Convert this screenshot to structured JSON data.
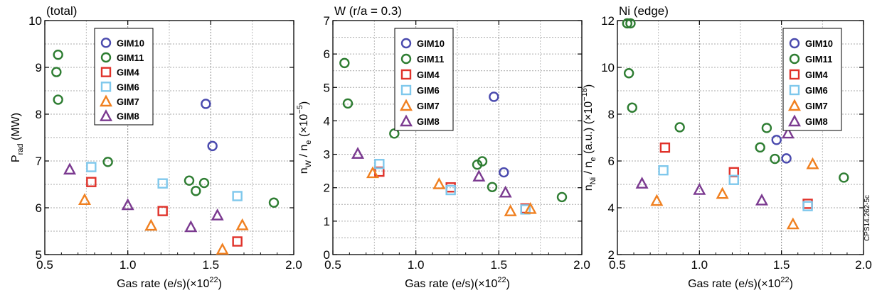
{
  "figure_id": "CPS14.262-5c",
  "colors": {
    "GIM10": "#4a4aae",
    "GIM11": "#2e7d32",
    "GIM4": "#e0322a",
    "GIM6": "#7fc8ec",
    "GIM7": "#f08020",
    "GIM8": "#7b3a90"
  },
  "markers": {
    "GIM10": "circle",
    "GIM11": "circle",
    "GIM4": "square",
    "GIM6": "square",
    "GIM7": "triangle",
    "GIM8": "triangle"
  },
  "chart_data": [
    {
      "type": "scatter",
      "title": "(total)",
      "xlabel": "Gas rate (e/s)(×10",
      "xlabel_sup": "22",
      "xlabel_tail": ")",
      "ylabel_main": "P",
      "ylabel_sub": "rad",
      "ylabel_tail": " (MW)",
      "xlim": [
        0.5,
        2.0
      ],
      "ylim": [
        5,
        10
      ],
      "xticks": [
        "0.5",
        "1.0",
        "1.5",
        "2.0"
      ],
      "yticks": [
        "5",
        "6",
        "7",
        "8",
        "9",
        "10"
      ],
      "grid": true,
      "legend": "top-left",
      "series": [
        {
          "name": "GIM10",
          "points": [
            [
              1.47,
              8.22
            ],
            [
              1.51,
              7.32
            ]
          ]
        },
        {
          "name": "GIM11",
          "points": [
            [
              0.58,
              9.27
            ],
            [
              0.57,
              8.9
            ],
            [
              0.58,
              8.31
            ],
            [
              0.88,
              6.98
            ],
            [
              1.37,
              6.58
            ],
            [
              1.41,
              6.36
            ],
            [
              1.46,
              6.53
            ],
            [
              1.88,
              6.11
            ]
          ]
        },
        {
          "name": "GIM4",
          "points": [
            [
              0.78,
              6.55
            ],
            [
              1.21,
              5.93
            ],
            [
              1.66,
              5.28
            ]
          ]
        },
        {
          "name": "GIM6",
          "points": [
            [
              0.78,
              6.87
            ],
            [
              1.21,
              6.52
            ],
            [
              1.66,
              6.25
            ]
          ]
        },
        {
          "name": "GIM7",
          "points": [
            [
              0.74,
              6.17
            ],
            [
              1.14,
              5.62
            ],
            [
              1.57,
              5.11
            ],
            [
              1.69,
              5.63
            ]
          ]
        },
        {
          "name": "GIM8",
          "points": [
            [
              0.65,
              6.82
            ],
            [
              1.0,
              6.06
            ],
            [
              1.38,
              5.59
            ],
            [
              1.54,
              5.84
            ]
          ]
        }
      ]
    },
    {
      "type": "scatter",
      "title": "W (r/a = 0.3)",
      "xlabel": "Gas rate (e/s)(×10",
      "xlabel_sup": "22",
      "xlabel_tail": ")",
      "ylabel_main": "n",
      "ylabel_sub": "W",
      "ylabel_mid": " / n",
      "ylabel_sub2": "e",
      "ylabel_tail": " (×10",
      "ylabel_sup": "−5",
      "ylabel_end": ")",
      "xlim": [
        0.5,
        2.0
      ],
      "ylim": [
        0,
        7
      ],
      "xticks": [
        "0.5",
        "1.0",
        "1.5",
        "2.0"
      ],
      "yticks": [
        "0",
        "1",
        "2",
        "3",
        "4",
        "5",
        "6",
        "7"
      ],
      "grid": true,
      "legend": "top-center",
      "series": [
        {
          "name": "GIM10",
          "points": [
            [
              1.47,
              4.72
            ],
            [
              1.53,
              2.46
            ]
          ]
        },
        {
          "name": "GIM11",
          "points": [
            [
              0.57,
              5.73
            ],
            [
              0.59,
              4.52
            ],
            [
              0.87,
              3.62
            ],
            [
              1.37,
              2.69
            ],
            [
              1.4,
              2.79
            ],
            [
              1.46,
              2.02
            ],
            [
              1.88,
              1.72
            ]
          ]
        },
        {
          "name": "GIM4",
          "points": [
            [
              0.78,
              2.48
            ],
            [
              1.21,
              2.01
            ],
            [
              1.66,
              1.38
            ]
          ]
        },
        {
          "name": "GIM6",
          "points": [
            [
              0.78,
              2.71
            ],
            [
              1.21,
              1.93
            ],
            [
              1.66,
              1.35
            ]
          ]
        },
        {
          "name": "GIM7",
          "points": [
            [
              0.74,
              2.44
            ],
            [
              1.14,
              2.11
            ],
            [
              1.57,
              1.3
            ],
            [
              1.69,
              1.37
            ]
          ]
        },
        {
          "name": "GIM8",
          "points": [
            [
              0.65,
              3.02
            ],
            [
              1.38,
              2.34
            ],
            [
              1.54,
              1.86
            ]
          ]
        }
      ]
    },
    {
      "type": "scatter",
      "title": "Ni (edge)",
      "xlabel": "Gas rate (e/s)(×10",
      "xlabel_sup": "22",
      "xlabel_tail": ")",
      "ylabel_main": "n",
      "ylabel_sub": "Ni",
      "ylabel_mid": " / n",
      "ylabel_sub2": "e",
      "ylabel_tail": " (a.u.) (×10",
      "ylabel_sup": "−18",
      "ylabel_end": ")",
      "xlim": [
        0.5,
        2.0
      ],
      "ylim": [
        2,
        12
      ],
      "xticks": [
        "0.5",
        "1.0",
        "1.5",
        "2.0"
      ],
      "yticks": [
        "2",
        "4",
        "6",
        "8",
        "10",
        "12"
      ],
      "grid": true,
      "legend": "top-right",
      "series": [
        {
          "name": "GIM10",
          "points": [
            [
              1.47,
              6.9
            ],
            [
              1.53,
              6.11
            ]
          ]
        },
        {
          "name": "GIM11",
          "points": [
            [
              0.56,
              11.88
            ],
            [
              0.58,
              11.88
            ],
            [
              0.57,
              9.75
            ],
            [
              0.59,
              8.28
            ],
            [
              0.88,
              7.44
            ],
            [
              1.37,
              6.58
            ],
            [
              1.41,
              7.41
            ],
            [
              1.46,
              6.09
            ],
            [
              1.88,
              5.29
            ]
          ]
        },
        {
          "name": "GIM4",
          "points": [
            [
              0.79,
              6.57
            ],
            [
              1.21,
              5.52
            ],
            [
              1.66,
              4.17
            ]
          ]
        },
        {
          "name": "GIM6",
          "points": [
            [
              0.78,
              5.6
            ],
            [
              1.21,
              5.19
            ],
            [
              1.66,
              4.07
            ]
          ]
        },
        {
          "name": "GIM7",
          "points": [
            [
              0.74,
              4.3
            ],
            [
              1.14,
              4.6
            ],
            [
              1.57,
              3.3
            ],
            [
              1.69,
              5.87
            ]
          ]
        },
        {
          "name": "GIM8",
          "points": [
            [
              0.65,
              5.04
            ],
            [
              1.0,
              4.77
            ],
            [
              1.38,
              4.32
            ],
            [
              1.54,
              7.18
            ]
          ]
        }
      ]
    }
  ]
}
